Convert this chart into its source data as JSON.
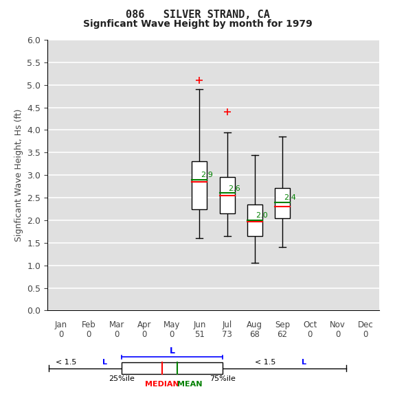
{
  "title1": "086   SILVER STRAND, CA",
  "title2": "Signficant Wave Height by month for 1979",
  "ylabel": "Signficant Wave Height, Hs (ft)",
  "months": [
    "Jan",
    "Feb",
    "Mar",
    "Apr",
    "May",
    "Jun",
    "Jul",
    "Aug",
    "Sep",
    "Oct",
    "Nov",
    "Dec"
  ],
  "counts": [
    0,
    0,
    0,
    0,
    0,
    51,
    73,
    68,
    62,
    0,
    0,
    0
  ],
  "ylim": [
    0.0,
    6.0
  ],
  "yticks": [
    0.0,
    0.5,
    1.0,
    1.5,
    2.0,
    2.5,
    3.0,
    3.5,
    4.0,
    4.5,
    5.0,
    5.5,
    6.0
  ],
  "boxes": [
    {
      "month_idx": 5,
      "q1": 2.25,
      "median": 2.85,
      "mean": 2.9,
      "q3": 3.3,
      "whisker_low": 1.6,
      "whisker_high": 4.9,
      "outliers": [
        5.1
      ]
    },
    {
      "month_idx": 6,
      "q1": 2.15,
      "median": 2.55,
      "mean": 2.6,
      "q3": 2.95,
      "whisker_low": 1.65,
      "whisker_high": 3.95,
      "outliers": [
        4.4
      ]
    },
    {
      "month_idx": 7,
      "q1": 1.65,
      "median": 1.97,
      "mean": 2.0,
      "q3": 2.35,
      "whisker_low": 1.05,
      "whisker_high": 3.45,
      "outliers": []
    },
    {
      "month_idx": 8,
      "q1": 2.05,
      "median": 2.3,
      "mean": 2.4,
      "q3": 2.72,
      "whisker_low": 1.4,
      "whisker_high": 3.85,
      "outliers": []
    }
  ],
  "box_width": 0.55,
  "box_color": "white",
  "box_edge_color": "black",
  "median_color": "red",
  "mean_color": "green",
  "whisker_color": "black",
  "outlier_color": "red",
  "outlier_marker": "+",
  "fig_bg_color": "#ffffff",
  "plot_bg_color": "#e0e0e0",
  "grid_color": "white",
  "text_color": "#444444"
}
